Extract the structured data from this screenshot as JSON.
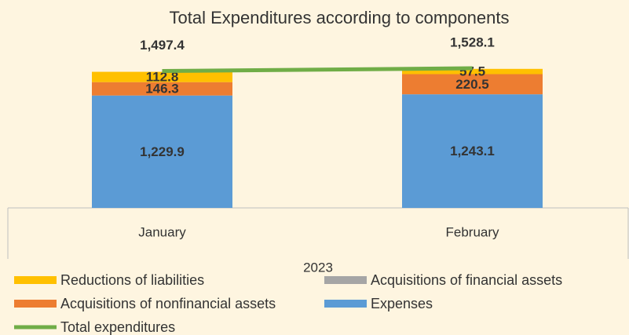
{
  "chart_data": {
    "type": "bar",
    "title": "Total Expenditures according to components",
    "categories": [
      "January",
      "February"
    ],
    "group_label": "2023",
    "ylim": [
      0,
      2000
    ],
    "stacked": true,
    "series": [
      {
        "name": "Expenses",
        "color": "#5b9bd5",
        "values": [
          1229.9,
          1243.1
        ],
        "value_labels": [
          "1,229.9",
          "1,243.1"
        ]
      },
      {
        "name": "Acquisitions of nonfinancial assets",
        "color": "#ed7d31",
        "values": [
          146.3,
          220.5
        ],
        "value_labels": [
          "146.3",
          "220.5"
        ]
      },
      {
        "name": "Acquisitions of financial assets",
        "color": "#a5a5a5",
        "values": [
          null,
          null
        ]
      },
      {
        "name": "Reductions of liabilities",
        "color": "#ffc000",
        "values": [
          112.8,
          57.5
        ],
        "value_labels": [
          "112.8",
          "57.5"
        ]
      },
      {
        "name": "Total expenditures",
        "type": "line",
        "color": "#70ad47",
        "values": [
          1497.4,
          1528.1
        ],
        "value_labels": [
          "1,497.4",
          "1,528.1"
        ]
      }
    ]
  }
}
